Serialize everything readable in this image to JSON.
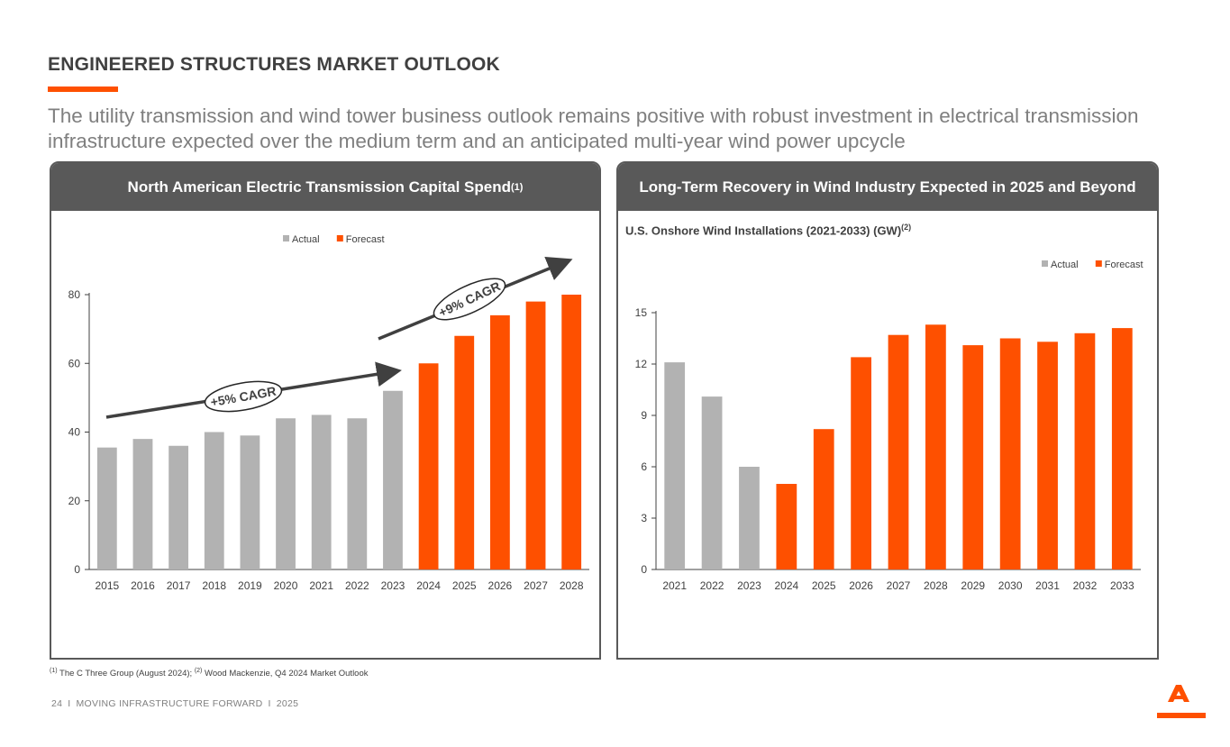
{
  "page": {
    "title": "ENGINEERED STRUCTURES MARKET OUTLOOK",
    "subtitle": "The utility transmission and wind tower business outlook remains positive with robust investment in electrical transmission infrastructure expected over the medium term and an anticipated multi-year wind power upcycle",
    "footnote_marker_1": "(1)",
    "footnote_text_1": " The C Three Group (August 2024); ",
    "footnote_marker_2": "(2)",
    "footnote_text_2": " Wood Mackenzie, Q4 2024 Market Outlook",
    "footer_page": "24",
    "footer_sep1": "I",
    "footer_text": "MOVING INFRASTRUCTURE FORWARD",
    "footer_sep2": "I",
    "footer_year": "2025"
  },
  "colors": {
    "actual": "#b2b2b2",
    "forecast": "#fe5000",
    "accent": "#fe5000",
    "panel_header": "#595959"
  },
  "icons": {
    "logo": "company-logo-a-mark"
  },
  "chart_data": [
    {
      "type": "bar",
      "title": "North American Electric Transmission Capital Spend",
      "title_sup": "(1)",
      "categories": [
        "2015",
        "2016",
        "2017",
        "2018",
        "2019",
        "2020",
        "2021",
        "2022",
        "2023",
        "2024",
        "2025",
        "2026",
        "2027",
        "2028"
      ],
      "values": [
        35.5,
        38,
        36,
        40,
        39,
        44,
        45,
        44,
        52,
        60,
        68,
        74,
        78,
        80
      ],
      "status": [
        "actual",
        "actual",
        "actual",
        "actual",
        "actual",
        "actual",
        "actual",
        "actual",
        "actual",
        "forecast",
        "forecast",
        "forecast",
        "forecast",
        "forecast"
      ],
      "legend": [
        "Actual",
        "Forecast"
      ],
      "legend_position": "top-center",
      "ylim": [
        0,
        80
      ],
      "yticks": [
        0,
        20,
        40,
        60,
        80
      ],
      "grid": false,
      "annotations": [
        {
          "text": "+5% CAGR",
          "span": [
            "2015",
            "2023"
          ]
        },
        {
          "text": "+9% CAGR",
          "span": [
            "2023",
            "2028"
          ]
        }
      ]
    },
    {
      "type": "bar",
      "title": "Long-Term Recovery in Wind Industry Expected in 2025 and Beyond",
      "subtitle": "U.S. Onshore Wind Installations (2021-2033) (GW)",
      "subtitle_sup": "(2)",
      "categories": [
        "2021",
        "2022",
        "2023",
        "2024",
        "2025",
        "2026",
        "2027",
        "2028",
        "2029",
        "2030",
        "2031",
        "2032",
        "2033"
      ],
      "values": [
        12.1,
        10.1,
        6.0,
        5.0,
        8.2,
        12.4,
        13.7,
        14.3,
        13.1,
        13.5,
        13.3,
        13.8,
        14.1
      ],
      "status": [
        "actual",
        "actual",
        "actual",
        "forecast",
        "forecast",
        "forecast",
        "forecast",
        "forecast",
        "forecast",
        "forecast",
        "forecast",
        "forecast",
        "forecast"
      ],
      "legend": [
        "Actual",
        "Forecast"
      ],
      "legend_position": "top-right",
      "ylim": [
        0,
        15
      ],
      "yticks": [
        0,
        3,
        6,
        9,
        12,
        15
      ],
      "grid": false
    }
  ]
}
